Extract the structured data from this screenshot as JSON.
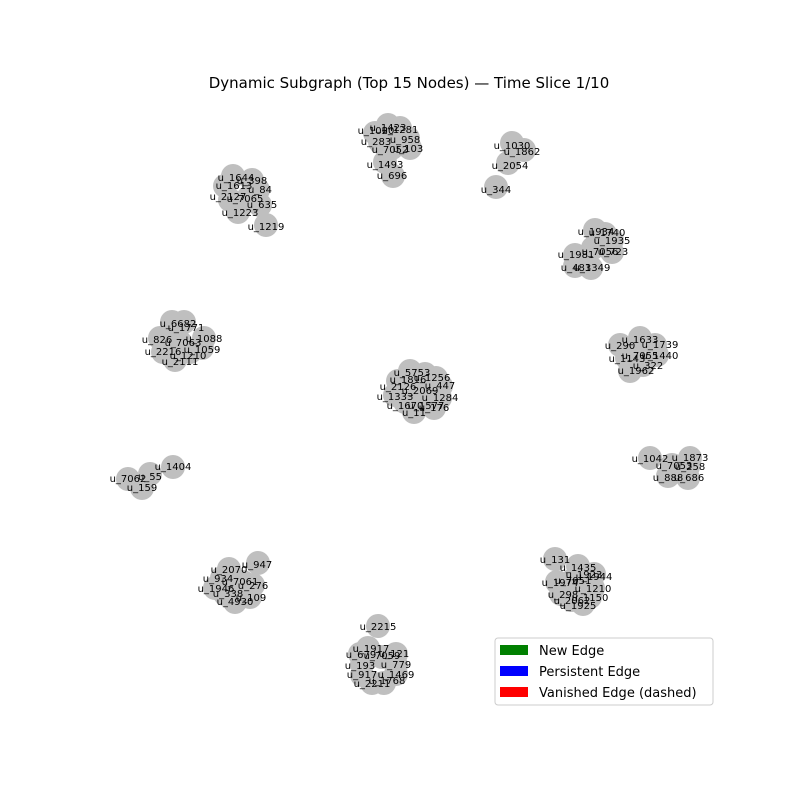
{
  "title": "Dynamic Subgraph (Top 15 Nodes) — Time Slice 1/10",
  "node_color": "#bfbfbf",
  "legend": {
    "items": [
      {
        "label": "New Edge",
        "color": "#008000"
      },
      {
        "label": "Persistent Edge",
        "color": "#0000ff"
      },
      {
        "label": "Vanished Edge (dashed)",
        "color": "#ff0000"
      }
    ]
  },
  "clusters": [
    {
      "labels": [
        "u_1423",
        "u_1281",
        "u_1020",
        "u_958",
        "u_283",
        "u_7052",
        "u_103",
        "u_1493",
        "u_696"
      ]
    },
    {
      "labels": [
        "u_1030",
        "u_1862",
        "u_2054",
        "u_344"
      ]
    },
    {
      "labels": [
        "u_1644",
        "u_398",
        "u_1613",
        "u_84",
        "u_2127",
        "u_7065",
        "u_635",
        "u_1223",
        "u_1219"
      ]
    },
    {
      "labels": [
        "u_1934",
        "u_1740",
        "u_1935",
        "u_7056",
        "u_723",
        "u_1981",
        "u_483",
        "u_1349"
      ]
    },
    {
      "labels": [
        "u_6682",
        "u_1771",
        "u_1088",
        "u_826",
        "u_7063",
        "u_1059",
        "u_2216",
        "u_1210",
        "u_2111"
      ]
    },
    {
      "labels": [
        "u_1633",
        "u_290",
        "u_1739",
        "u_7055",
        "u_1440",
        "u_1143",
        "u_322",
        "u_1962"
      ]
    },
    {
      "labels": [
        "u_5753",
        "u_1816",
        "u_1256",
        "u_2126",
        "u_447",
        "u_2069",
        "u_1333",
        "u_1284",
        "u_1670",
        "u_1577",
        "u_11",
        "u_176"
      ]
    },
    {
      "labels": [
        "u_1404",
        "u_55",
        "u_7062",
        "u_159"
      ]
    },
    {
      "labels": [
        "u_1042",
        "u_1873",
        "u_7053",
        "u_258",
        "u_888",
        "u_686"
      ]
    },
    {
      "labels": [
        "u_947",
        "u_2070",
        "u_934",
        "u_7061",
        "u_276",
        "u_1946",
        "u_338",
        "u_109",
        "u_4930"
      ]
    },
    {
      "labels": [
        "u_131",
        "u_1435",
        "u_1944",
        "u_1923",
        "u_1974",
        "u_7051",
        "u_1210",
        "u_298",
        "u_1150",
        "u_2062",
        "u_1925"
      ]
    },
    {
      "labels": [
        "u_2215",
        "u_1917",
        "u_679",
        "u_7059",
        "u_121",
        "u_193",
        "u_779",
        "u_917",
        "u_1469",
        "u_2211",
        "u_1768"
      ]
    }
  ]
}
